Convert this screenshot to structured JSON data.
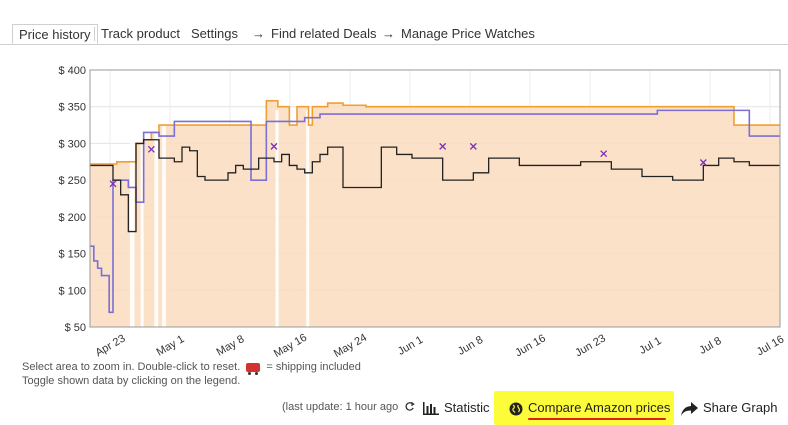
{
  "tabs": [
    {
      "label": "Price history",
      "active": true
    },
    {
      "label": "Track product",
      "active": false
    },
    {
      "label": "Settings",
      "active": false
    },
    {
      "label": "Find related Deals",
      "active": false,
      "arrow": "→"
    },
    {
      "label": "Manage Price Watches",
      "active": false,
      "arrow": "→"
    }
  ],
  "chart_data": {
    "type": "line",
    "ylabel": "",
    "xlabel": "",
    "ylim": [
      50,
      400
    ],
    "y_ticks": [
      "$ 400",
      "$ 350",
      "$ 300",
      "$ 250",
      "$ 200",
      "$ 150",
      "$ 100",
      "$ 50"
    ],
    "x_ticks": [
      "Apr 23",
      "May 1",
      "May 8",
      "May 16",
      "May 24",
      "Jun 1",
      "Jun 8",
      "Jun 16",
      "Jun 23",
      "Jul 1",
      "Jul 8",
      "Jul 16"
    ],
    "grid": true,
    "colors": {
      "amazon": "#f0a030",
      "amazon_fill": "#fbdcc0",
      "new": "#7b6fd6",
      "used": "#222222"
    },
    "series": [
      {
        "color": "#f0a030",
        "fill": true,
        "x": [
          0,
          3,
          3.5,
          5,
          5.5,
          6,
          6.5,
          7,
          8,
          9,
          10,
          11,
          12,
          13,
          14,
          16,
          18,
          19,
          20,
          21,
          22,
          23,
          24,
          24.5,
          25,
          26,
          27,
          28,
          28.5,
          29,
          30,
          31,
          32,
          33,
          36,
          40,
          46,
          50,
          58,
          60,
          62,
          64,
          72,
          80,
          84,
          85,
          90
        ],
        "y": [
          272,
          272,
          275,
          275,
          275,
          300,
          300,
          305,
          315,
          325,
          325,
          325,
          325,
          325,
          325,
          325,
          325,
          325,
          325,
          325,
          325,
          358,
          358,
          350,
          350,
          325,
          350,
          350,
          325,
          350,
          350,
          355,
          355,
          352,
          350,
          350,
          350,
          350,
          350,
          350,
          350,
          350,
          350,
          350,
          325,
          325,
          325
        ]
      },
      {
        "color": "#7b6fd6",
        "x": [
          0,
          0.5,
          1,
          1.5,
          2,
          2.5,
          3,
          4,
          5,
          6,
          7,
          8,
          9,
          10,
          11,
          12,
          13,
          14,
          15,
          16,
          17,
          18,
          19,
          20,
          21,
          22,
          23,
          24,
          25,
          27,
          28,
          29,
          30,
          31,
          32,
          33,
          34,
          35,
          36,
          38,
          40,
          42,
          44,
          46,
          48,
          50,
          52,
          55,
          58,
          60,
          62,
          64,
          66,
          70,
          74,
          78,
          82,
          86,
          90
        ],
        "y": [
          160,
          140,
          130,
          120,
          120,
          70,
          250,
          250,
          240,
          220,
          315,
          315,
          310,
          310,
          330,
          330,
          330,
          330,
          330,
          330,
          330,
          330,
          330,
          330,
          250,
          250,
          330,
          330,
          330,
          330,
          335,
          335,
          340,
          340,
          340,
          340,
          340,
          340,
          340,
          340,
          340,
          340,
          340,
          340,
          340,
          340,
          340,
          340,
          340,
          340,
          340,
          340,
          340,
          340,
          345,
          345,
          345,
          310,
          310
        ]
      },
      {
        "color": "#222222",
        "x": [
          0,
          1,
          2,
          3,
          4,
          5,
          6,
          7,
          8,
          9,
          10,
          11,
          12,
          13,
          14,
          15,
          16,
          17,
          18,
          19,
          20,
          21,
          22,
          23,
          24,
          25,
          26,
          27,
          28,
          29,
          30,
          31,
          32,
          33,
          34,
          35,
          36,
          38,
          40,
          42,
          44,
          46,
          48,
          50,
          52,
          54,
          56,
          58,
          60,
          62,
          64,
          66,
          68,
          70,
          72,
          74,
          76,
          78,
          80,
          82,
          84,
          86,
          88,
          90
        ],
        "y": [
          270,
          270,
          270,
          250,
          230,
          180,
          300,
          305,
          305,
          280,
          280,
          275,
          295,
          290,
          255,
          250,
          250,
          250,
          260,
          270,
          265,
          265,
          280,
          280,
          275,
          285,
          270,
          265,
          260,
          275,
          285,
          295,
          295,
          240,
          240,
          240,
          240,
          295,
          285,
          280,
          280,
          250,
          250,
          260,
          280,
          280,
          270,
          270,
          270,
          270,
          275,
          275,
          265,
          265,
          255,
          255,
          250,
          250,
          270,
          280,
          275,
          270,
          270,
          270
        ]
      }
    ],
    "markers": [
      {
        "x": 3,
        "y": 245
      },
      {
        "x": 8,
        "y": 292
      },
      {
        "x": 24,
        "y": 296
      },
      {
        "x": 46,
        "y": 296
      },
      {
        "x": 50,
        "y": 296
      },
      {
        "x": 67,
        "y": 286
      },
      {
        "x": 80,
        "y": 274
      }
    ]
  },
  "hints": {
    "line1_text": "Select area to zoom in. Double-click to reset.",
    "shipping_text": "= shipping included",
    "line2_text": "Toggle shown data by clicking on the legend."
  },
  "bottom": {
    "last_update": "(last update: 1 hour ago",
    "refresh_icon": "refresh-icon",
    "statistic_label": "Statistic",
    "compare_label": "Compare Amazon prices",
    "share_label": "Share Graph"
  }
}
